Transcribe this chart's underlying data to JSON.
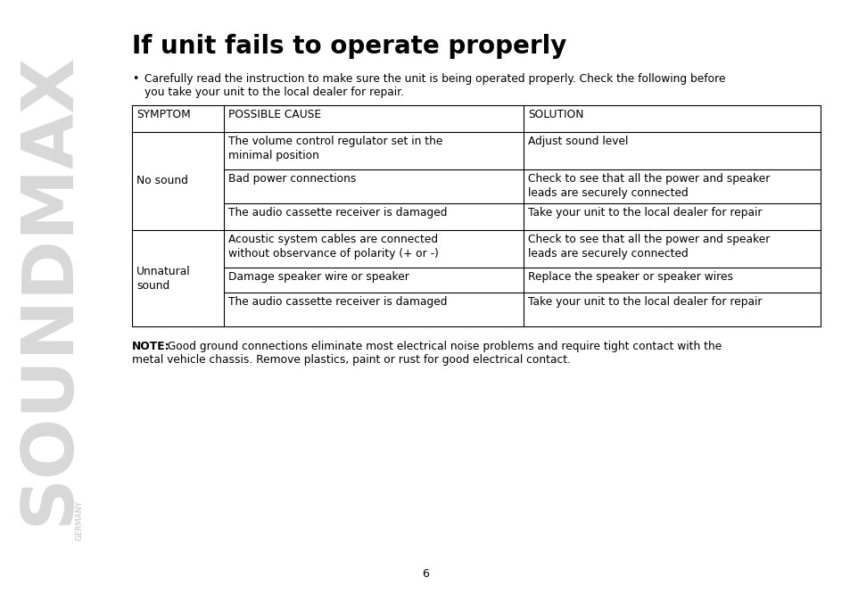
{
  "title": "If unit fails to operate properly",
  "bullet_line1": "Carefully read the instruction to make sure the unit is being operated properly. Check the following before",
  "bullet_line2": "you take your unit to the local dealer for repair.",
  "table_headers": [
    "SYMPTOM",
    "POSSIBLE CAUSE",
    "SOLUTION"
  ],
  "note_bold": "NOTE:",
  "note_rest": " Good ground connections eliminate most electrical noise problems and require tight contact with the",
  "note_line2": "metal vehicle chassis. Remove plastics, paint or rust for good electrical contact.",
  "page_number": "6",
  "soundmax_text": "SOUNDMAX",
  "germany_text": "GERMANY",
  "bg_color": "#ffffff",
  "text_color": "#000000",
  "border_color": "#000000"
}
